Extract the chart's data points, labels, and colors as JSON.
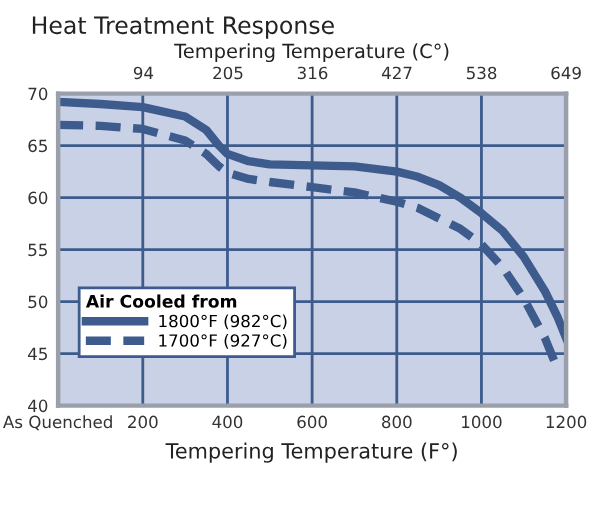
{
  "chart_data": {
    "type": "line",
    "title": "Heat Treatment Response",
    "xlabel": "Tempering Temperature (F°)",
    "x2label": "Tempering Temperature (C°)",
    "legend_title": "Air Cooled from",
    "series": [
      {
        "name": "1800°F (982°C)",
        "color": "#3d5b8c",
        "line_style": "solid",
        "x": [
          0,
          100,
          200,
          300,
          350,
          380,
          400,
          450,
          500,
          600,
          700,
          800,
          850,
          900,
          950,
          1000,
          1050,
          1100,
          1150,
          1180,
          1200
        ],
        "values": [
          69.2,
          69,
          68.7,
          67.8,
          66.5,
          65,
          64.2,
          63.5,
          63.2,
          63.1,
          63,
          62.5,
          62,
          61.2,
          60,
          58.5,
          56.8,
          54.3,
          51,
          48.5,
          46.5
        ]
      },
      {
        "name": "1700°F (927°C)",
        "color": "#3d5b8c",
        "line_style": "dashed",
        "x": [
          0,
          100,
          200,
          300,
          350,
          380,
          400,
          450,
          500,
          600,
          700,
          800,
          850,
          900,
          950,
          1000,
          1050,
          1100,
          1150,
          1180
        ],
        "values": [
          67,
          66.9,
          66.6,
          65.5,
          64.2,
          63,
          62.4,
          61.8,
          61.5,
          61,
          60.5,
          59.6,
          59,
          58,
          57,
          55.5,
          53.3,
          50.3,
          46.5,
          43.5
        ]
      }
    ],
    "xlim": [
      0,
      1200
    ],
    "xticks": [
      {
        "value": 0,
        "label": "As Quenched"
      },
      200,
      400,
      600,
      800,
      1000,
      1200
    ],
    "x2lim": [
      -18,
      649
    ],
    "x2ticks": [
      94,
      205,
      316,
      427,
      538,
      649
    ],
    "ylim": [
      40,
      70
    ],
    "yticks": [
      40,
      45,
      50,
      55,
      60,
      65,
      70
    ],
    "grid": true,
    "legend": "bottom left",
    "marker": "none"
  }
}
